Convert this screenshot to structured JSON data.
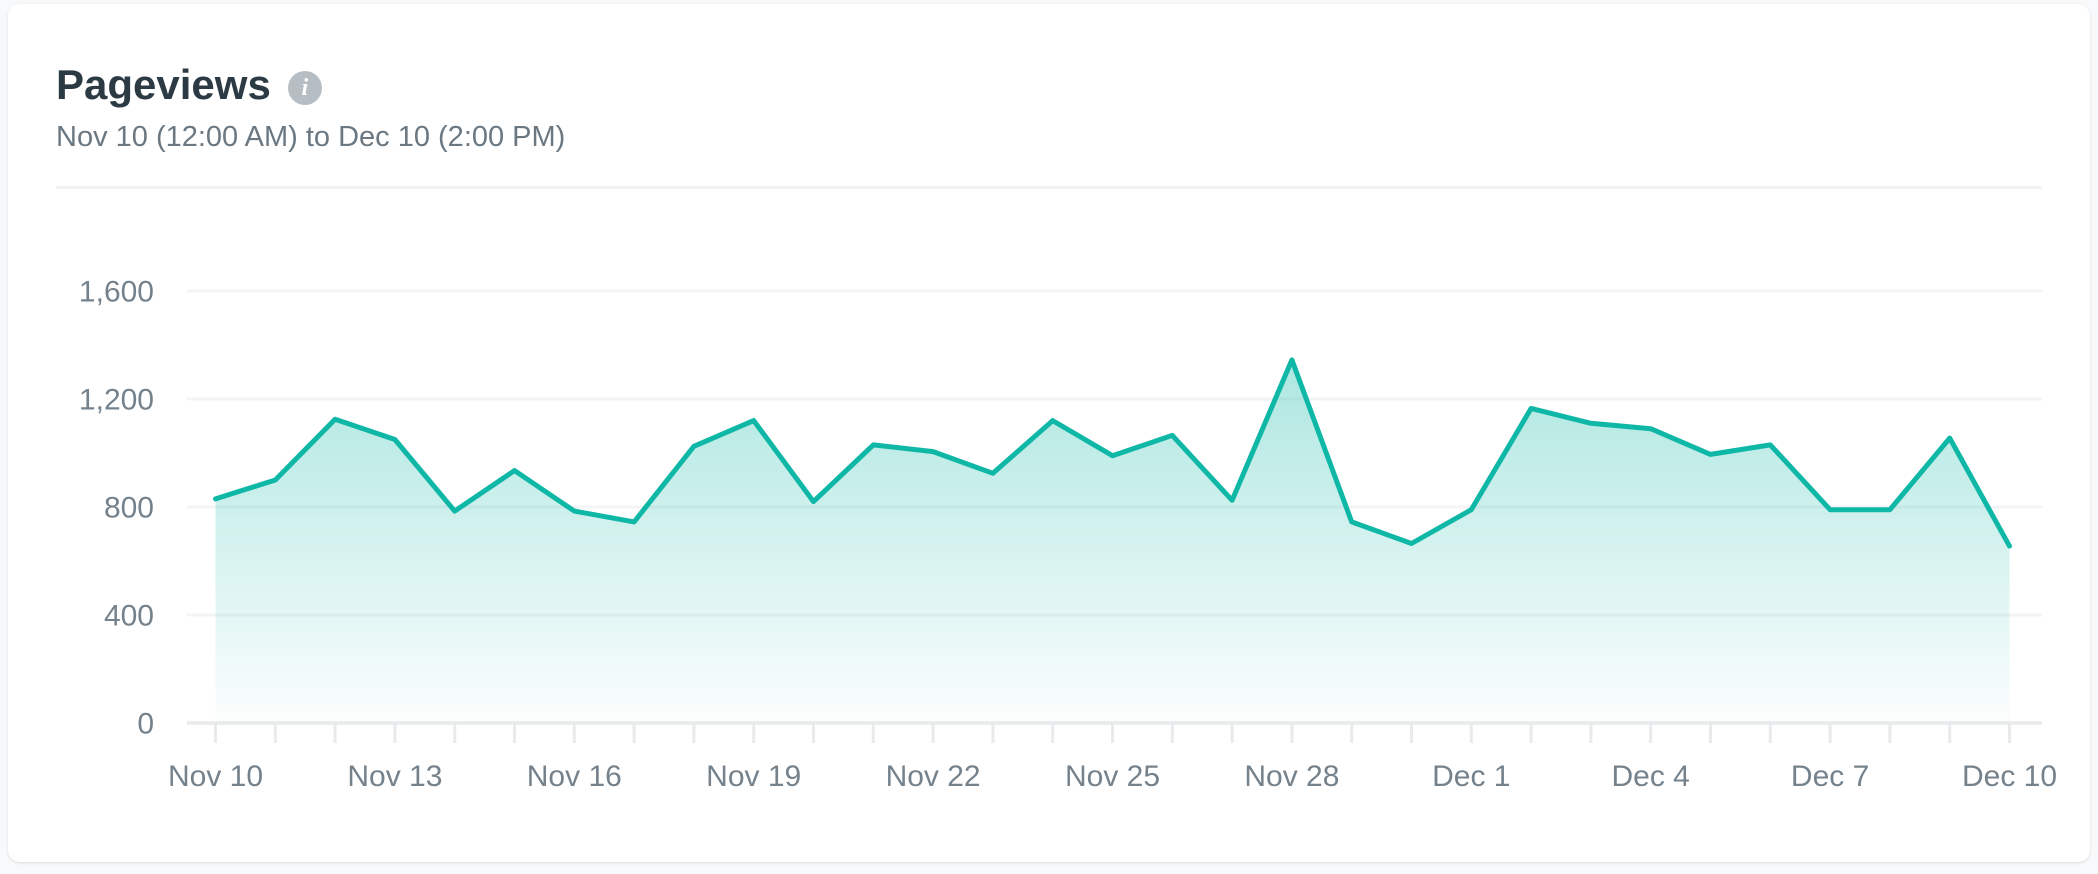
{
  "header": {
    "title": "Pageviews",
    "info_icon": "i",
    "date_range": "Nov 10 (12:00 AM) to Dec 10 (2:00 PM)"
  },
  "chart_data": {
    "type": "area",
    "title": "Pageviews",
    "xlabel": "",
    "ylabel": "",
    "x": [
      "Nov 10",
      "Nov 11",
      "Nov 12",
      "Nov 13",
      "Nov 14",
      "Nov 15",
      "Nov 16",
      "Nov 17",
      "Nov 18",
      "Nov 19",
      "Nov 20",
      "Nov 21",
      "Nov 22",
      "Nov 23",
      "Nov 24",
      "Nov 25",
      "Nov 26",
      "Nov 27",
      "Nov 28",
      "Nov 29",
      "Nov 30",
      "Dec 1",
      "Dec 2",
      "Dec 3",
      "Dec 4",
      "Dec 5",
      "Dec 6",
      "Dec 7",
      "Dec 8",
      "Dec 9",
      "Dec 10"
    ],
    "values": [
      830,
      900,
      1125,
      1050,
      785,
      935,
      785,
      745,
      1025,
      1120,
      820,
      1030,
      1005,
      925,
      1120,
      990,
      1065,
      825,
      1345,
      745,
      665,
      790,
      1165,
      1110,
      1090,
      995,
      1030,
      790,
      790,
      1055,
      655
    ],
    "x_tick_labels": [
      "Nov 10",
      "Nov 13",
      "Nov 16",
      "Nov 19",
      "Nov 22",
      "Nov 25",
      "Nov 28",
      "Dec 1",
      "Dec 4",
      "Dec 7",
      "Dec 10"
    ],
    "x_tick_every": 3,
    "ylim": [
      0,
      1600
    ],
    "y_ticks": [
      0,
      400,
      800,
      1200,
      1600
    ],
    "y_tick_labels": [
      "0",
      "400",
      "800",
      "1,200",
      "1,600"
    ],
    "grid": true,
    "legend": false,
    "colors": {
      "line": "#0fb7a6",
      "fill_top": "rgba(15,183,166,0.44)",
      "fill_bottom": "rgba(15,183,166,0.015)",
      "gridline": "#f3f4f6",
      "axis_line": "#e8eaec",
      "day_tick": "#e8eaec",
      "tick_label": "#75828c"
    }
  }
}
